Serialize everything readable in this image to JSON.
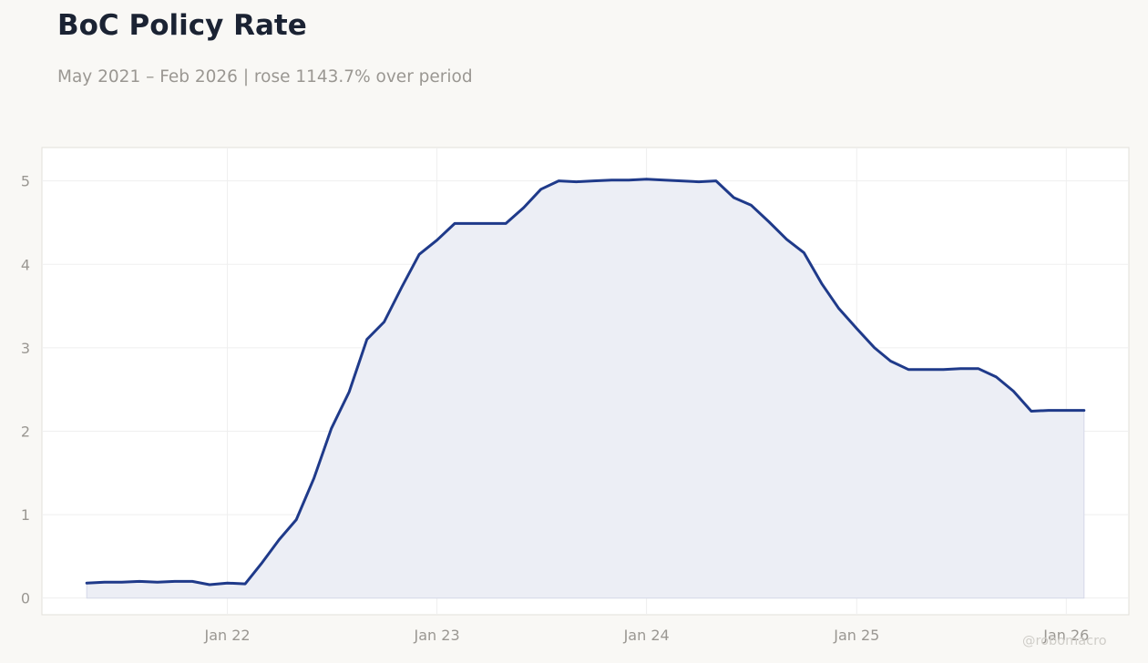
{
  "header": {
    "title": "BoC Policy Rate",
    "subtitle": "May 2021 – Feb 2026 | rose 1143.7% over period"
  },
  "watermark": "@robomacro",
  "colors": {
    "background": "#f9f8f5",
    "plot_background": "#ffffff",
    "line": "#1f3a8a",
    "fill": "#eceef5",
    "text_muted": "#9a9792",
    "title": "#1b2333"
  },
  "chart_data": {
    "type": "area",
    "title": "BoC Policy Rate",
    "xlabel": "",
    "ylabel": "",
    "grid": true,
    "ylim": [
      -0.2,
      5.4
    ],
    "xlim": [
      "2021-02-12",
      "2026-04-20"
    ],
    "yticks": [
      0,
      1,
      2,
      3,
      4,
      5
    ],
    "xticks": [
      {
        "date": "2022-01-01",
        "label": "Jan 22"
      },
      {
        "date": "2023-01-01",
        "label": "Jan 23"
      },
      {
        "date": "2024-01-01",
        "label": "Jan 24"
      },
      {
        "date": "2025-01-01",
        "label": "Jan 25"
      },
      {
        "date": "2026-01-01",
        "label": "Jan 26"
      }
    ],
    "series": [
      {
        "x": [
          "2021-05-01",
          "2021-06-01",
          "2021-07-01",
          "2021-08-01",
          "2021-09-01",
          "2021-10-01",
          "2021-11-01",
          "2021-12-01",
          "2022-01-01",
          "2022-02-01",
          "2022-03-01",
          "2022-04-01",
          "2022-05-01",
          "2022-06-01",
          "2022-07-01",
          "2022-08-01",
          "2022-09-01",
          "2022-10-01",
          "2022-11-01",
          "2022-12-01",
          "2023-01-01",
          "2023-02-01",
          "2023-03-01",
          "2023-04-01",
          "2023-05-01",
          "2023-06-01",
          "2023-07-01",
          "2023-08-01",
          "2023-09-01",
          "2023-10-01",
          "2023-11-01",
          "2023-12-01",
          "2024-01-01",
          "2024-02-01",
          "2024-03-01",
          "2024-04-01",
          "2024-05-01",
          "2024-06-01",
          "2024-07-01",
          "2024-08-01",
          "2024-09-01",
          "2024-10-01",
          "2024-11-01",
          "2024-12-01",
          "2025-01-01",
          "2025-02-01",
          "2025-03-01",
          "2025-04-01",
          "2025-05-01",
          "2025-06-01",
          "2025-07-01",
          "2025-08-01",
          "2025-09-01",
          "2025-10-01",
          "2025-11-01",
          "2025-12-01",
          "2026-01-01",
          "2026-02-01"
        ],
        "values": [
          0.18,
          0.19,
          0.19,
          0.2,
          0.19,
          0.2,
          0.2,
          0.16,
          0.18,
          0.17,
          0.41,
          0.7,
          0.94,
          1.44,
          2.03,
          2.47,
          3.1,
          3.31,
          3.73,
          4.12,
          4.29,
          4.49,
          4.49,
          4.49,
          4.49,
          4.68,
          4.9,
          5.0,
          4.99,
          5.0,
          5.01,
          5.01,
          5.02,
          5.01,
          5.0,
          4.99,
          5.0,
          4.8,
          4.71,
          4.51,
          4.3,
          4.14,
          3.77,
          3.47,
          3.23,
          3.0,
          2.84,
          2.74,
          2.74,
          2.74,
          2.75,
          2.75,
          2.65,
          2.48,
          2.24,
          2.25,
          2.25,
          2.25
        ]
      }
    ]
  }
}
